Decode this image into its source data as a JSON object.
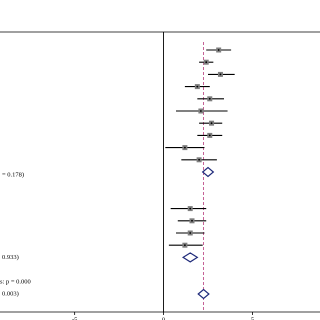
{
  "chart_data": {
    "type": "forest",
    "xlim": [
      -9.2,
      8.8
    ],
    "xticks": [
      -5,
      0,
      5
    ],
    "null_line": 0,
    "pooled_line": 2.25,
    "pooled_line_color": "#c0508a",
    "line_color": "#000000",
    "point_color": "#7f7f7f",
    "diamond_color": "#1f2a7a",
    "rows": [
      {
        "kind": "study",
        "estimate": 3.1,
        "lower": 2.4,
        "upper": 3.8,
        "label": null
      },
      {
        "kind": "study",
        "estimate": 2.4,
        "lower": 2.0,
        "upper": 2.8,
        "label": null
      },
      {
        "kind": "study",
        "estimate": 3.2,
        "lower": 2.5,
        "upper": 4.0,
        "label": null
      },
      {
        "kind": "study",
        "estimate": 1.9,
        "lower": 1.2,
        "upper": 2.6,
        "label": null
      },
      {
        "kind": "study",
        "estimate": 2.6,
        "lower": 1.9,
        "upper": 3.4,
        "label": null
      },
      {
        "kind": "study",
        "estimate": 2.1,
        "lower": 0.7,
        "upper": 3.6,
        "label": null
      },
      {
        "kind": "study",
        "estimate": 2.7,
        "lower": 2.0,
        "upper": 3.3,
        "label": null
      },
      {
        "kind": "study",
        "estimate": 2.6,
        "lower": 1.9,
        "upper": 3.3,
        "label": null
      },
      {
        "kind": "study",
        "estimate": 1.2,
        "lower": 0.1,
        "upper": 2.3,
        "label": null
      },
      {
        "kind": "study",
        "estimate": 2.0,
        "lower": 1.0,
        "upper": 3.0,
        "label": null
      },
      {
        "kind": "pooled",
        "estimate": 2.5,
        "lower": 2.2,
        "upper": 2.8,
        "label": "= 0.178)"
      },
      null,
      null,
      {
        "kind": "study",
        "estimate": 1.5,
        "lower": 0.4,
        "upper": 2.4,
        "label": null
      },
      {
        "kind": "study",
        "estimate": 1.6,
        "lower": 0.8,
        "upper": 2.4,
        "label": null
      },
      {
        "kind": "study",
        "estimate": 1.5,
        "lower": 0.7,
        "upper": 2.3,
        "label": null
      },
      {
        "kind": "study",
        "estimate": 1.2,
        "lower": 0.3,
        "upper": 2.2,
        "label": null
      },
      {
        "kind": "pooled",
        "estimate": 1.5,
        "lower": 1.1,
        "upper": 1.9,
        "label": "0.933)"
      },
      null,
      {
        "kind": "text",
        "label": "s: p = 0.000"
      },
      {
        "kind": "pooled",
        "estimate": 2.25,
        "lower": 1.95,
        "upper": 2.55,
        "label": "0.003)"
      }
    ]
  }
}
